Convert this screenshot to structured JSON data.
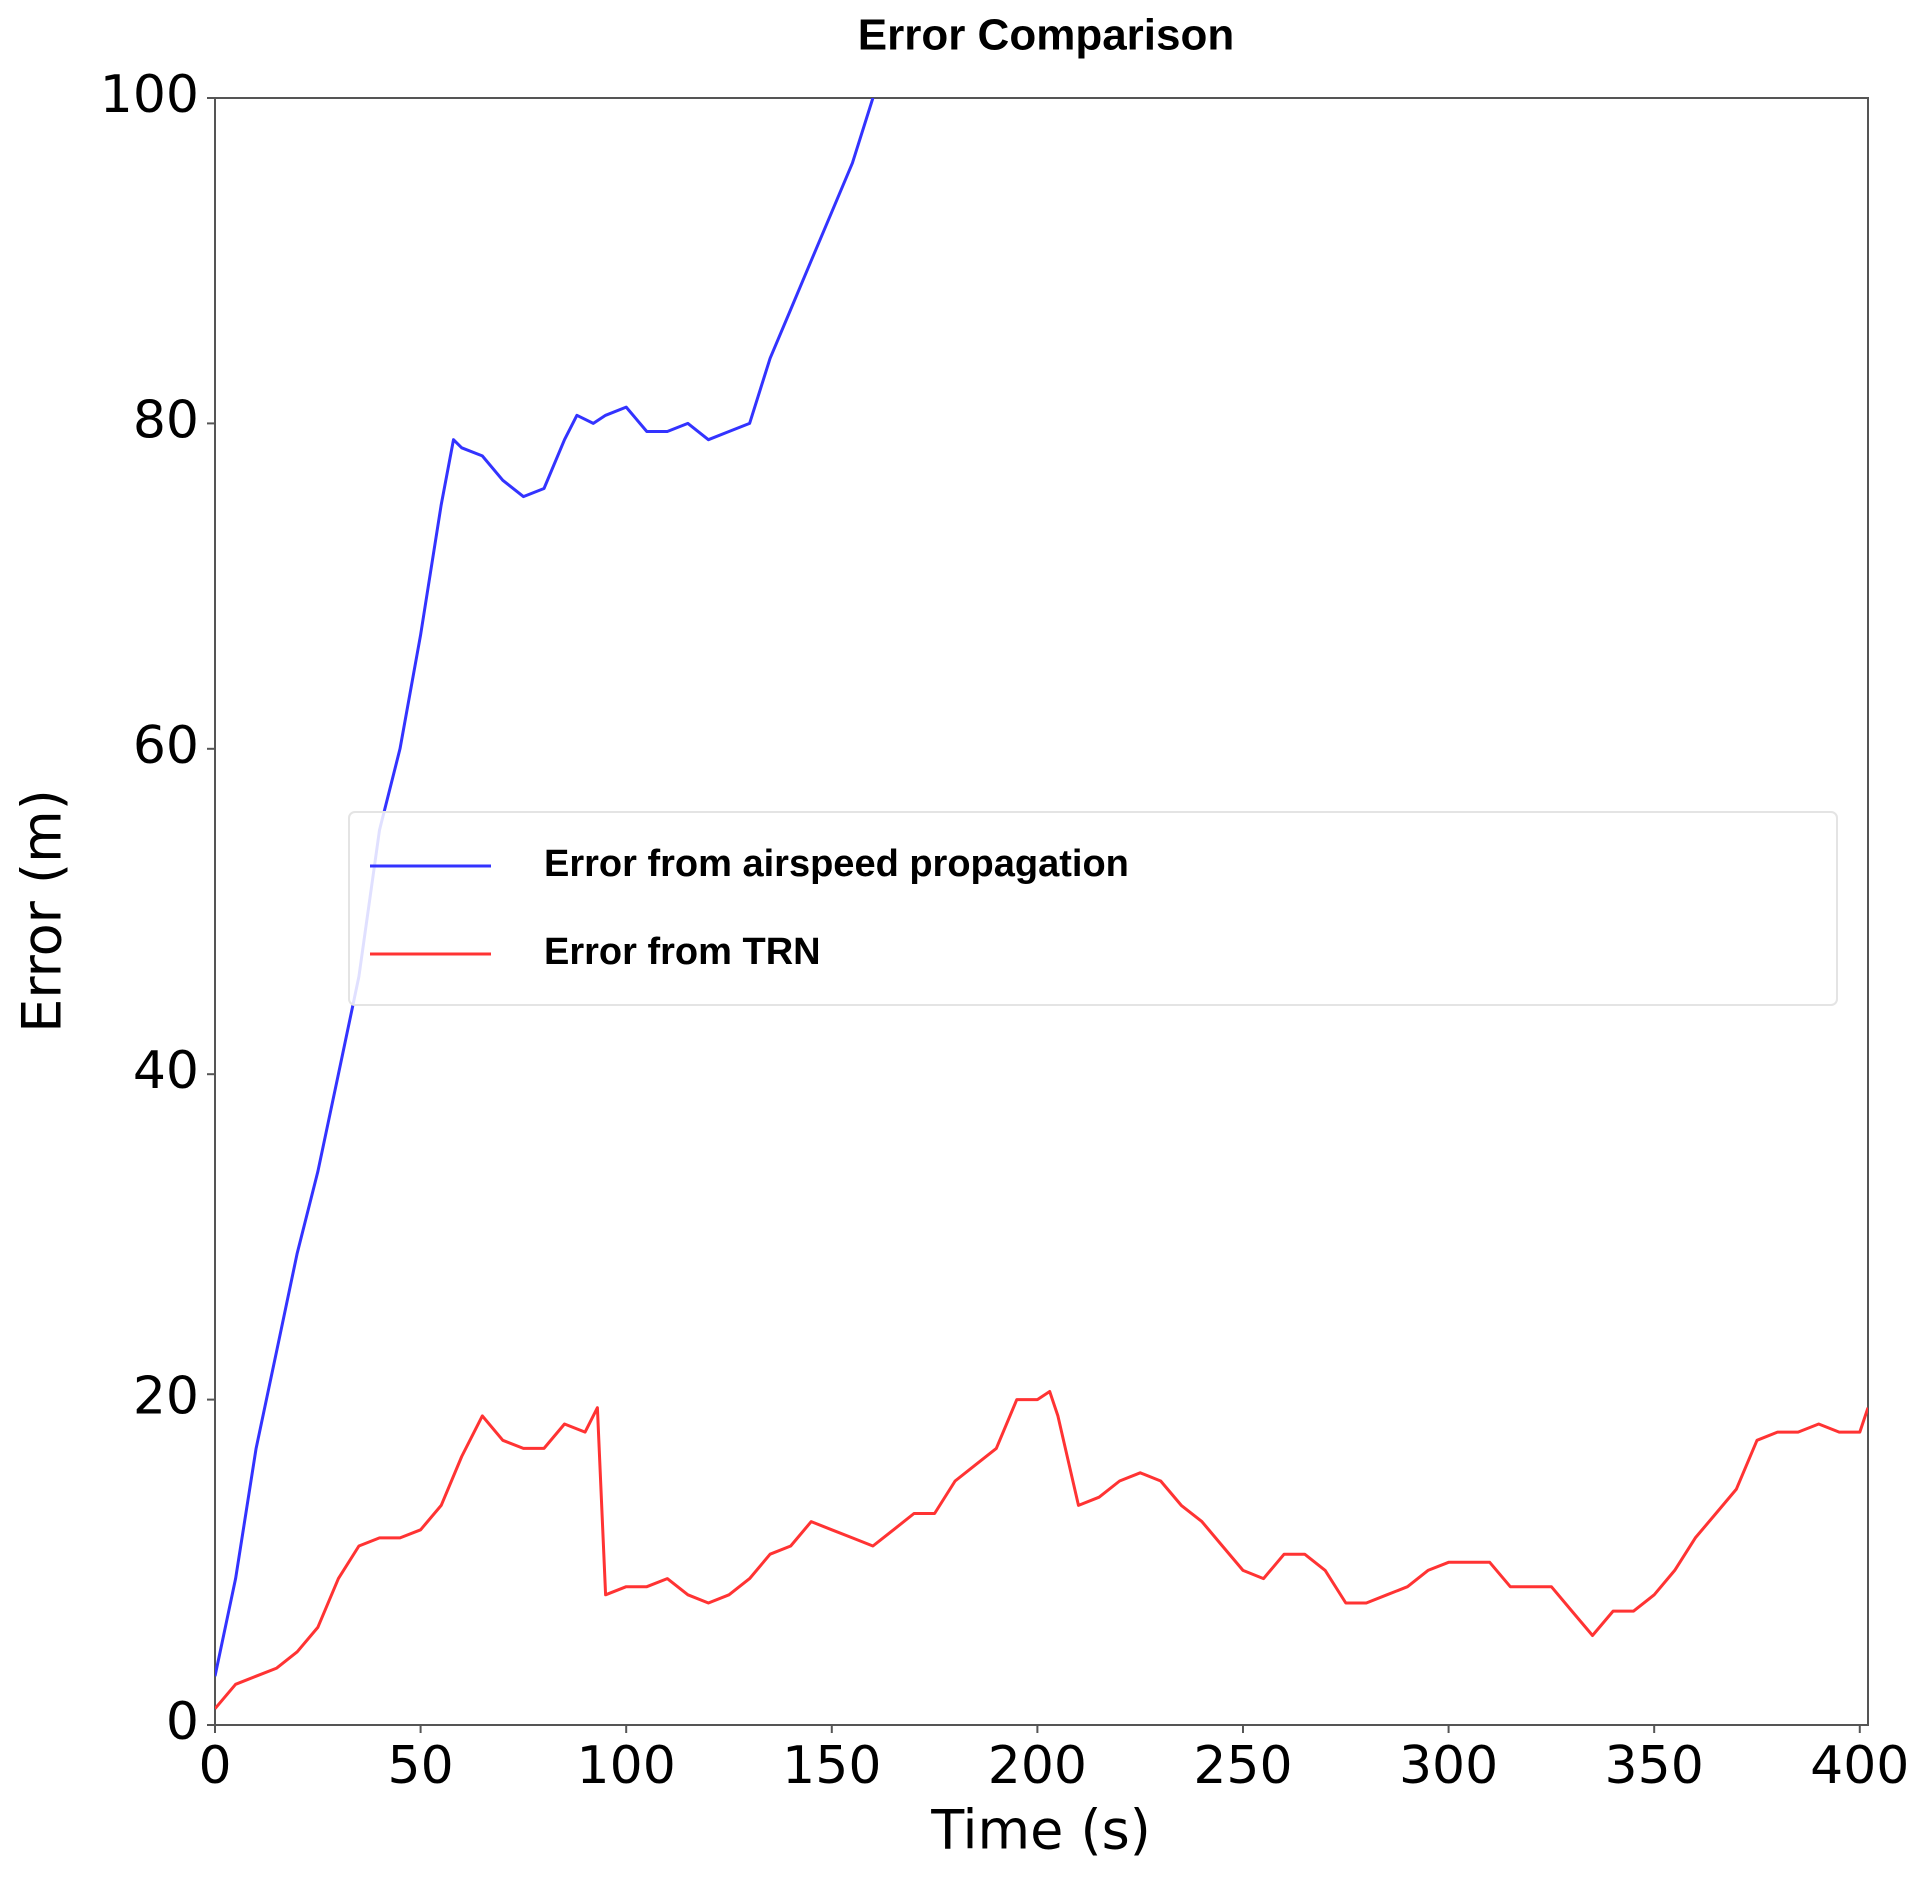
{
  "chart_data": {
    "type": "line",
    "title": "Error Comparison",
    "x_label": "Time (s)",
    "y_label": "Error (m)",
    "xlim": [
      0,
      402
    ],
    "ylim": [
      0,
      100
    ],
    "xticks": [
      0,
      50,
      100,
      150,
      200,
      250,
      300,
      350,
      400
    ],
    "yticks": [
      0,
      20,
      40,
      60,
      80,
      100
    ],
    "legend": "center right",
    "series": [
      {
        "name": "Error from airspeed propagation",
        "color": "#3333ff",
        "x": [
          0,
          5,
          10,
          15,
          20,
          25,
          30,
          35,
          40,
          45,
          50,
          55,
          58,
          60,
          65,
          70,
          75,
          80,
          85,
          88,
          92,
          95,
          100,
          105,
          110,
          115,
          120,
          125,
          130,
          135,
          140,
          145,
          150,
          155,
          160
        ],
        "values": [
          3,
          9,
          17,
          23,
          29,
          34,
          40,
          46,
          55,
          60,
          67,
          75,
          79,
          78.5,
          78,
          76.5,
          75.5,
          76,
          79,
          80.5,
          80,
          80.5,
          81,
          79.5,
          79.5,
          80,
          79,
          79.5,
          80,
          84,
          87,
          90,
          93,
          96,
          100
        ]
      },
      {
        "name": "Error from TRN",
        "color": "#ff3333",
        "x": [
          0,
          5,
          10,
          15,
          20,
          25,
          30,
          35,
          40,
          45,
          50,
          55,
          60,
          65,
          70,
          75,
          80,
          85,
          90,
          93,
          95,
          100,
          105,
          110,
          115,
          120,
          125,
          130,
          135,
          140,
          145,
          150,
          155,
          160,
          165,
          170,
          175,
          180,
          185,
          190,
          195,
          200,
          203,
          205,
          210,
          215,
          220,
          225,
          230,
          235,
          240,
          245,
          250,
          255,
          260,
          265,
          270,
          275,
          280,
          285,
          290,
          295,
          300,
          305,
          310,
          315,
          320,
          325,
          330,
          335,
          340,
          345,
          350,
          355,
          360,
          365,
          370,
          375,
          380,
          385,
          390,
          395,
          400,
          402
        ],
        "values": [
          1,
          2.5,
          3,
          3.5,
          4.5,
          6,
          9,
          11,
          11.5,
          11.5,
          12,
          13.5,
          16.5,
          19,
          17.5,
          17,
          17,
          18.5,
          18,
          19.5,
          8,
          8.5,
          8.5,
          9,
          8,
          7.5,
          8,
          9,
          10.5,
          11,
          12.5,
          12,
          11.5,
          11,
          12,
          13,
          13,
          15,
          16,
          17,
          20,
          20,
          20.5,
          19,
          13.5,
          14,
          15,
          15.5,
          15,
          13.5,
          12.5,
          11,
          9.5,
          9,
          10.5,
          10.5,
          9.5,
          7.5,
          7.5,
          8,
          8.5,
          9.5,
          10,
          10,
          10,
          8.5,
          8.5,
          8.5,
          7,
          5.5,
          7,
          7,
          8,
          9.5,
          11.5,
          13,
          14.5,
          17.5,
          18,
          18,
          18.5,
          18,
          18,
          19.5
        ]
      }
    ]
  }
}
